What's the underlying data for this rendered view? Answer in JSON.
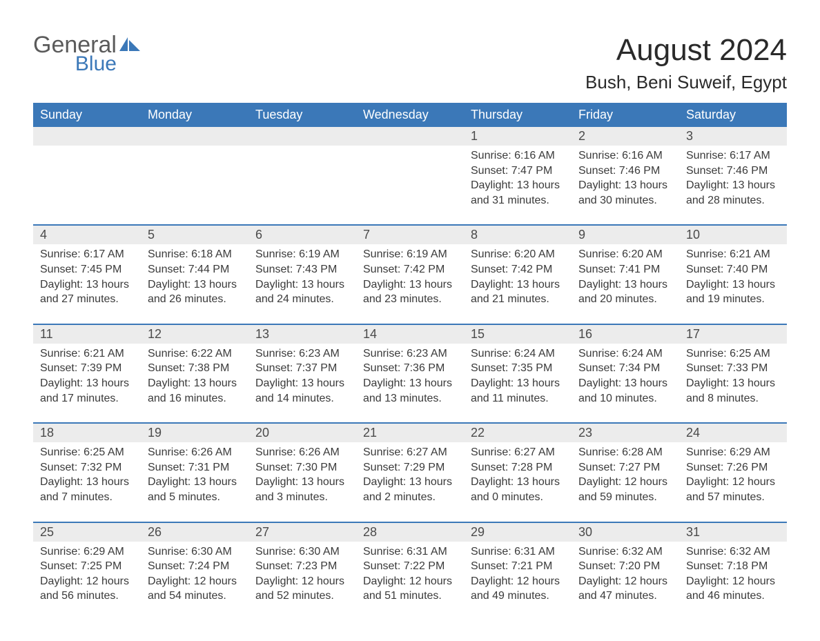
{
  "brand": {
    "general": "General",
    "blue": "Blue"
  },
  "colors": {
    "accent": "#3b78b8",
    "header_bg": "#3b78b8",
    "header_text": "#ffffff",
    "daynum_bg": "#ececec",
    "text": "#333333"
  },
  "title": "August 2024",
  "location": "Bush, Beni Suweif, Egypt",
  "weekdays": [
    "Sunday",
    "Monday",
    "Tuesday",
    "Wednesday",
    "Thursday",
    "Friday",
    "Saturday"
  ],
  "calendar": {
    "type": "calendar-grid",
    "columns": 7,
    "rows": 5,
    "first_weekday_index": 4,
    "days": [
      {
        "n": 1,
        "sunrise": "6:16 AM",
        "sunset": "7:47 PM",
        "daylight": "13 hours and 31 minutes."
      },
      {
        "n": 2,
        "sunrise": "6:16 AM",
        "sunset": "7:46 PM",
        "daylight": "13 hours and 30 minutes."
      },
      {
        "n": 3,
        "sunrise": "6:17 AM",
        "sunset": "7:46 PM",
        "daylight": "13 hours and 28 minutes."
      },
      {
        "n": 4,
        "sunrise": "6:17 AM",
        "sunset": "7:45 PM",
        "daylight": "13 hours and 27 minutes."
      },
      {
        "n": 5,
        "sunrise": "6:18 AM",
        "sunset": "7:44 PM",
        "daylight": "13 hours and 26 minutes."
      },
      {
        "n": 6,
        "sunrise": "6:19 AM",
        "sunset": "7:43 PM",
        "daylight": "13 hours and 24 minutes."
      },
      {
        "n": 7,
        "sunrise": "6:19 AM",
        "sunset": "7:42 PM",
        "daylight": "13 hours and 23 minutes."
      },
      {
        "n": 8,
        "sunrise": "6:20 AM",
        "sunset": "7:42 PM",
        "daylight": "13 hours and 21 minutes."
      },
      {
        "n": 9,
        "sunrise": "6:20 AM",
        "sunset": "7:41 PM",
        "daylight": "13 hours and 20 minutes."
      },
      {
        "n": 10,
        "sunrise": "6:21 AM",
        "sunset": "7:40 PM",
        "daylight": "13 hours and 19 minutes."
      },
      {
        "n": 11,
        "sunrise": "6:21 AM",
        "sunset": "7:39 PM",
        "daylight": "13 hours and 17 minutes."
      },
      {
        "n": 12,
        "sunrise": "6:22 AM",
        "sunset": "7:38 PM",
        "daylight": "13 hours and 16 minutes."
      },
      {
        "n": 13,
        "sunrise": "6:23 AM",
        "sunset": "7:37 PM",
        "daylight": "13 hours and 14 minutes."
      },
      {
        "n": 14,
        "sunrise": "6:23 AM",
        "sunset": "7:36 PM",
        "daylight": "13 hours and 13 minutes."
      },
      {
        "n": 15,
        "sunrise": "6:24 AM",
        "sunset": "7:35 PM",
        "daylight": "13 hours and 11 minutes."
      },
      {
        "n": 16,
        "sunrise": "6:24 AM",
        "sunset": "7:34 PM",
        "daylight": "13 hours and 10 minutes."
      },
      {
        "n": 17,
        "sunrise": "6:25 AM",
        "sunset": "7:33 PM",
        "daylight": "13 hours and 8 minutes."
      },
      {
        "n": 18,
        "sunrise": "6:25 AM",
        "sunset": "7:32 PM",
        "daylight": "13 hours and 7 minutes."
      },
      {
        "n": 19,
        "sunrise": "6:26 AM",
        "sunset": "7:31 PM",
        "daylight": "13 hours and 5 minutes."
      },
      {
        "n": 20,
        "sunrise": "6:26 AM",
        "sunset": "7:30 PM",
        "daylight": "13 hours and 3 minutes."
      },
      {
        "n": 21,
        "sunrise": "6:27 AM",
        "sunset": "7:29 PM",
        "daylight": "13 hours and 2 minutes."
      },
      {
        "n": 22,
        "sunrise": "6:27 AM",
        "sunset": "7:28 PM",
        "daylight": "13 hours and 0 minutes."
      },
      {
        "n": 23,
        "sunrise": "6:28 AM",
        "sunset": "7:27 PM",
        "daylight": "12 hours and 59 minutes."
      },
      {
        "n": 24,
        "sunrise": "6:29 AM",
        "sunset": "7:26 PM",
        "daylight": "12 hours and 57 minutes."
      },
      {
        "n": 25,
        "sunrise": "6:29 AM",
        "sunset": "7:25 PM",
        "daylight": "12 hours and 56 minutes."
      },
      {
        "n": 26,
        "sunrise": "6:30 AM",
        "sunset": "7:24 PM",
        "daylight": "12 hours and 54 minutes."
      },
      {
        "n": 27,
        "sunrise": "6:30 AM",
        "sunset": "7:23 PM",
        "daylight": "12 hours and 52 minutes."
      },
      {
        "n": 28,
        "sunrise": "6:31 AM",
        "sunset": "7:22 PM",
        "daylight": "12 hours and 51 minutes."
      },
      {
        "n": 29,
        "sunrise": "6:31 AM",
        "sunset": "7:21 PM",
        "daylight": "12 hours and 49 minutes."
      },
      {
        "n": 30,
        "sunrise": "6:32 AM",
        "sunset": "7:20 PM",
        "daylight": "12 hours and 47 minutes."
      },
      {
        "n": 31,
        "sunrise": "6:32 AM",
        "sunset": "7:18 PM",
        "daylight": "12 hours and 46 minutes."
      }
    ]
  },
  "labels": {
    "sunrise_prefix": "Sunrise: ",
    "sunset_prefix": "Sunset: ",
    "daylight_prefix": "Daylight: "
  }
}
